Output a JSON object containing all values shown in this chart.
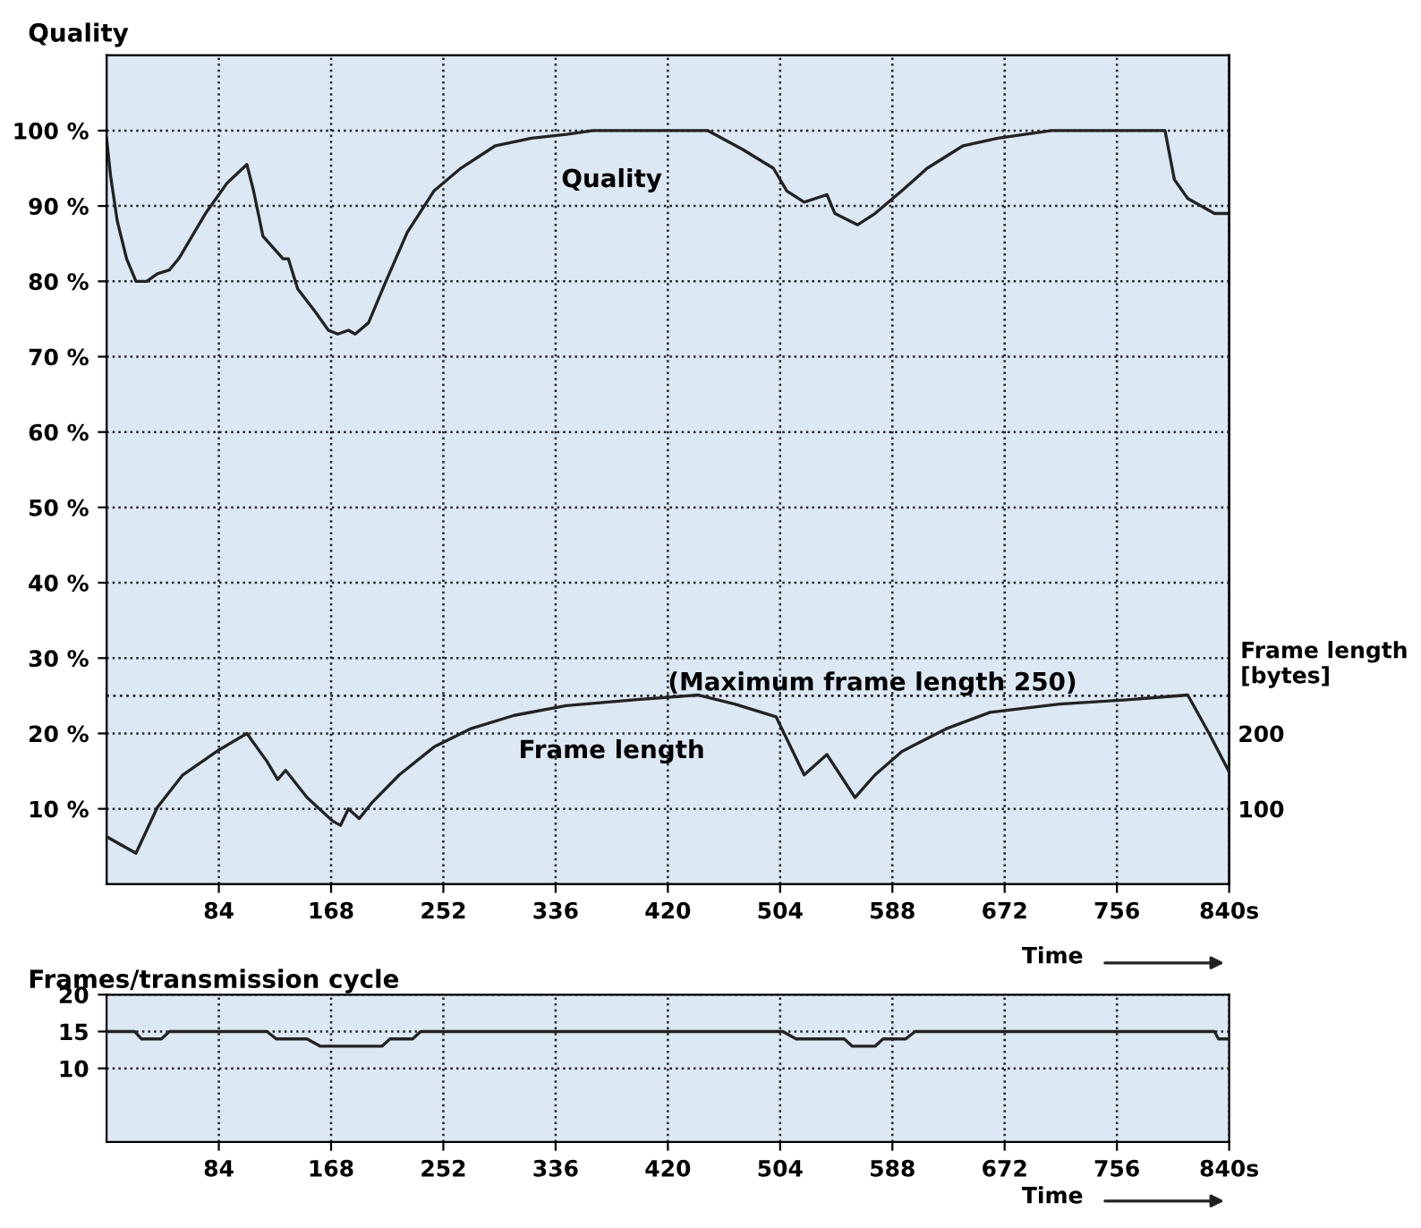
{
  "chart_data": [
    {
      "type": "line",
      "ylabel": "Quality",
      "y2label": "Frame length\n[bytes]",
      "xlabel": "Time",
      "xlim": [
        0,
        840
      ],
      "xticks": [
        84,
        168,
        252,
        336,
        420,
        504,
        588,
        672,
        756,
        {
          "value": 840,
          "label": "840s"
        }
      ],
      "ylim": [
        0,
        110
      ],
      "yticks": [
        {
          "value": 10,
          "label": "10 %"
        },
        {
          "value": 20,
          "label": "20 %"
        },
        {
          "value": 30,
          "label": "30 %"
        },
        {
          "value": 40,
          "label": "40 %"
        },
        {
          "value": 50,
          "label": "50 %"
        },
        {
          "value": 60,
          "label": "60 %"
        },
        {
          "value": 70,
          "label": "70 %"
        },
        {
          "value": 80,
          "label": "80 %"
        },
        {
          "value": 90,
          "label": "90 %"
        },
        {
          "value": 100,
          "label": "100 %"
        }
      ],
      "y2lim": [
        0,
        1100
      ],
      "y2ticks": [
        100,
        200
      ],
      "grid": true,
      "marker": "none",
      "line_style": "solid",
      "ref_lines": [
        {
          "axis": "y2",
          "value": 250,
          "label": "(Maximum frame length 250)",
          "line_style": "dotted",
          "color": "#222222"
        }
      ],
      "series": [
        {
          "name": "Quality",
          "color": "#222222",
          "x": [
            0,
            3,
            8,
            15,
            22,
            30,
            38,
            47,
            54,
            74,
            90,
            105,
            110,
            117,
            127,
            132,
            136,
            143,
            156,
            166,
            173,
            181,
            186,
            196,
            209,
            225,
            245,
            265,
            291,
            318,
            344,
            364,
            450,
            476,
            499,
            509,
            522,
            539,
            545,
            562,
            575,
            595,
            614,
            641,
            667,
            707,
            792,
            799,
            809,
            829,
            840
          ],
          "values": [
            99,
            94,
            88,
            83,
            80,
            80,
            81,
            81.5,
            83,
            89,
            93,
            95.5,
            92,
            86,
            84,
            83,
            83,
            79,
            76,
            73.5,
            73,
            73.5,
            73,
            74.5,
            80,
            86.5,
            92,
            95,
            98,
            99,
            99.5,
            100,
            100,
            97.5,
            95,
            92,
            90.5,
            91.5,
            89,
            87.5,
            89,
            92,
            95,
            98,
            99,
            100,
            100,
            93.5,
            91,
            89,
            89
          ]
        },
        {
          "name": "Frame length",
          "color": "#222222",
          "axis": "y2",
          "x": [
            0,
            22,
            38,
            57,
            84,
            105,
            120,
            128,
            134,
            150,
            169,
            175,
            181,
            189,
            199,
            219,
            245,
            272,
            305,
            344,
            397,
            443,
            470,
            501,
            522,
            539,
            560,
            575,
            595,
            628,
            661,
            713,
            766,
            809,
            825,
            840
          ],
          "values": [
            63,
            41,
            102,
            145,
            178,
            200,
            163,
            139,
            151,
            115,
            84,
            78,
            100,
            87,
            109,
            145,
            182,
            206,
            224,
            237,
            245,
            251,
            239,
            222,
            145,
            172,
            115,
            145,
            176,
            206,
            228,
            239,
            245,
            251,
            200,
            149
          ]
        }
      ]
    },
    {
      "type": "line",
      "ylabel": "Frames/transmission cycle",
      "xlabel": "Time",
      "xlim": [
        0,
        840
      ],
      "xticks": [
        84,
        168,
        252,
        336,
        420,
        504,
        588,
        672,
        756,
        {
          "value": 840,
          "label": "840s"
        }
      ],
      "ylim": [
        0,
        20
      ],
      "yticks": [
        10,
        15,
        20
      ],
      "grid": true,
      "marker": "none",
      "line_style": "solid",
      "series": [
        {
          "color": "#222222",
          "x": [
            0,
            21,
            26,
            41,
            47,
            120,
            127,
            150,
            160,
            206,
            212,
            229,
            235,
            506,
            516,
            552,
            558,
            575,
            581,
            598,
            605,
            829,
            832,
            840
          ],
          "values": [
            15,
            15,
            14,
            14,
            15,
            15,
            14,
            14,
            13,
            13,
            14,
            14,
            15,
            15,
            14,
            14,
            13,
            13,
            14,
            14,
            15,
            15,
            14,
            14
          ]
        }
      ]
    }
  ]
}
